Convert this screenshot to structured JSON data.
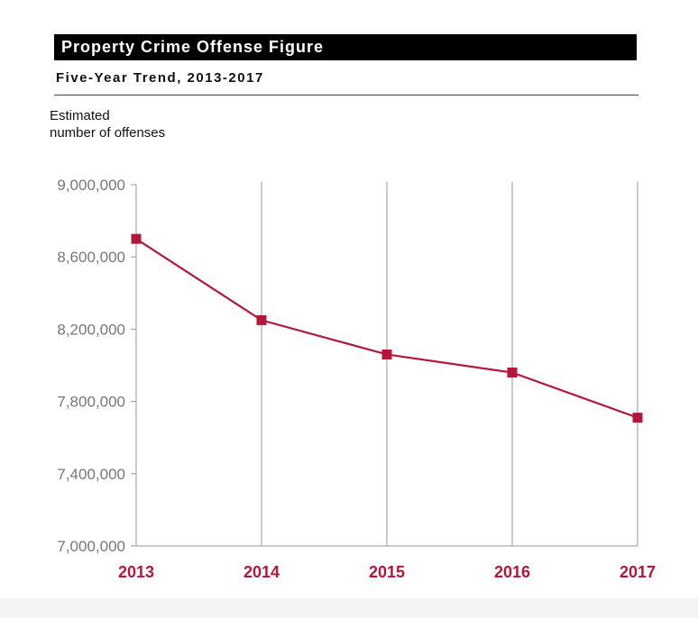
{
  "header": {
    "title": "Property Crime Offense Figure",
    "subtitle": "Five-Year Trend, 2013-2017"
  },
  "colors": {
    "accent": "#b5173a",
    "gridline": "#999999",
    "tick_text": "#777777"
  },
  "chart_data": {
    "type": "line",
    "title": "Property Crime Offense Figure",
    "subtitle": "Five-Year Trend, 2013-2017",
    "ylabel_lines": [
      "Estimated",
      "number of offenses"
    ],
    "xlabel": "",
    "categories": [
      "2013",
      "2014",
      "2015",
      "2016",
      "2017"
    ],
    "series": [
      {
        "values": [
          8700000,
          8250000,
          8060000,
          7960000,
          7710000
        ]
      }
    ],
    "ylim": [
      7000000,
      9000000
    ],
    "yticks": [
      "7,000,000",
      "7,400,000",
      "7,800,000",
      "8,200,000",
      "8,600,000",
      "9,000,000"
    ],
    "ytick_values": [
      7000000,
      7400000,
      7800000,
      8200000,
      8600000,
      9000000
    ],
    "grid": "vertical",
    "marker": "square"
  }
}
